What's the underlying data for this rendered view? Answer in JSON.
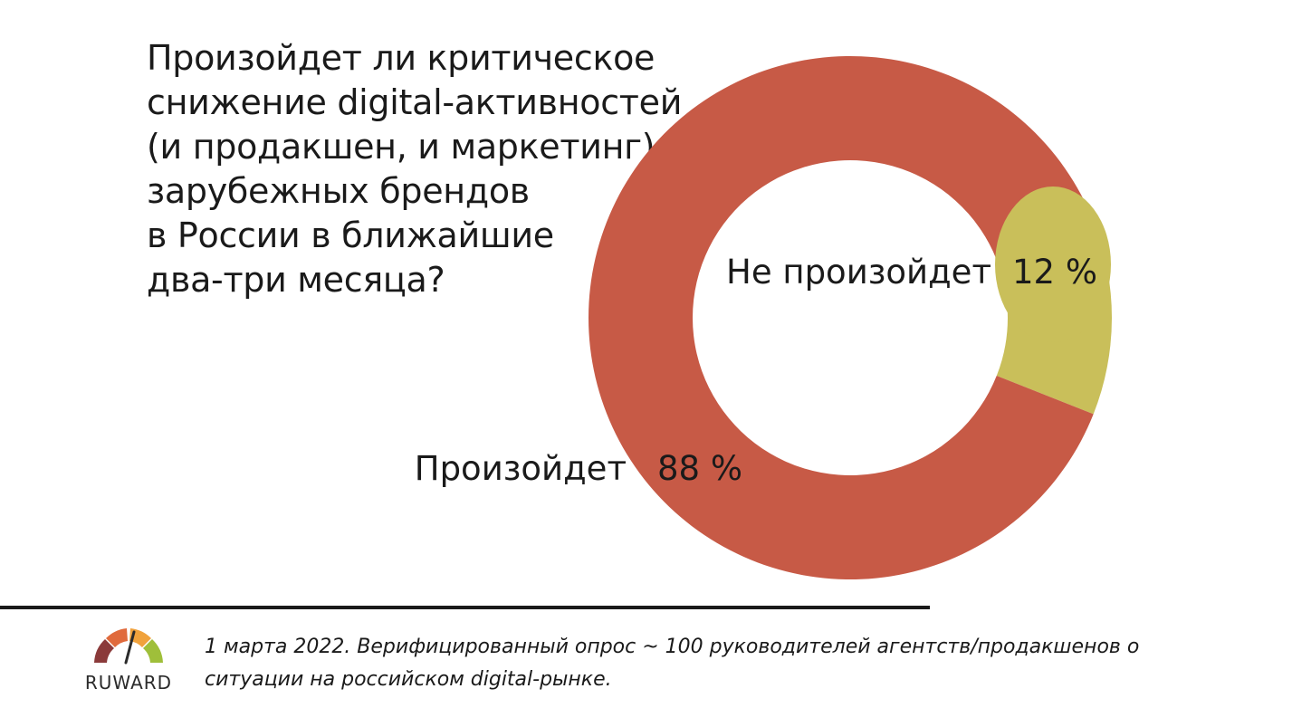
{
  "title_lines": [
    "Произойдет ли критическое",
    "снижение digital-активностей",
    "(и продакшен, и маркетинг)",
    "зарубежных брендов",
    "в России в ближайшие",
    "два-три месяца?"
  ],
  "chart_data": {
    "type": "pie",
    "variant": "donut",
    "slices": [
      {
        "label": "Произойдет",
        "value": 88,
        "value_label": "88 %",
        "color": "#c75a46"
      },
      {
        "label": "Не произойдет",
        "value": 12,
        "value_label": "12 %",
        "color": "#c9bf5a"
      }
    ],
    "legend": "none"
  },
  "footnote_lines": [
    "1 марта 2022. Верифицированный опрос ~ 100 руководителей агентств/продакшенов о",
    "ситуации на российском digital-рынке."
  ],
  "logo": {
    "text": "RUWARD",
    "gauge_colors": [
      "#8b3a3a",
      "#e06a3c",
      "#f0a23c",
      "#9fbf3a"
    ]
  }
}
